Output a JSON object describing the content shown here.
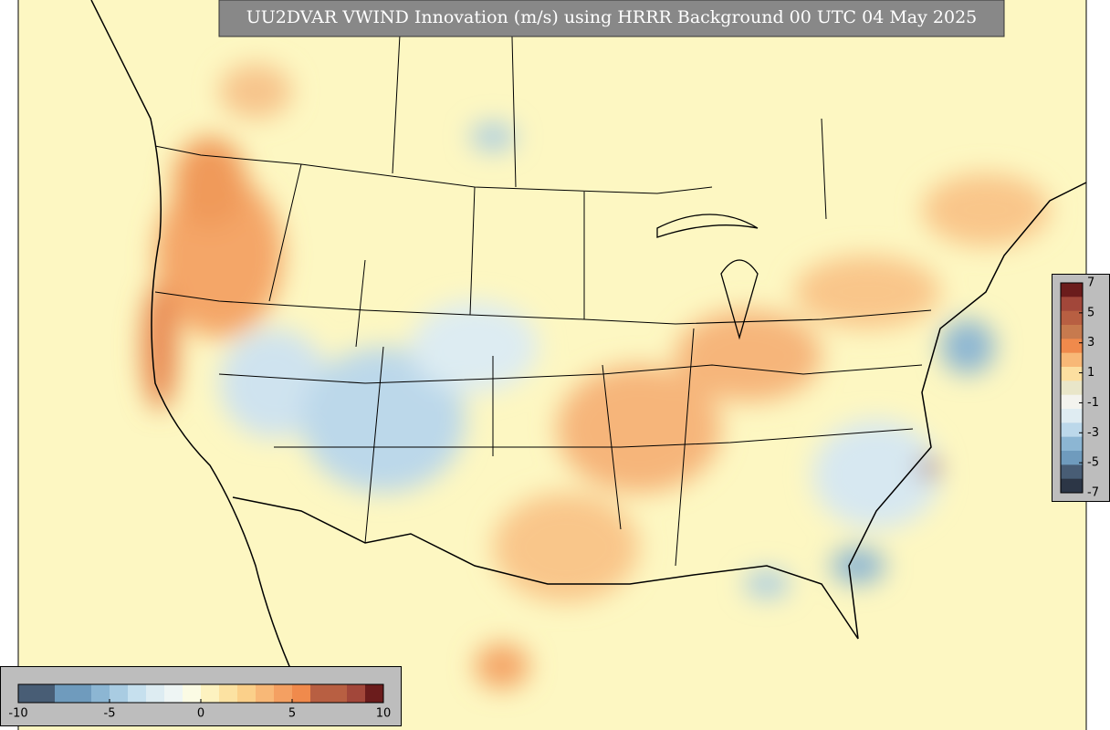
{
  "title": "UU2DVAR VWIND Innovation (m/s) using HRRR Background 00 UTC 04 May 2025",
  "colorbar_bottom": {
    "ticks": [
      -10,
      -5,
      0,
      5,
      10
    ],
    "colors": [
      "#485d75",
      "#485d75",
      "#6f9bbd",
      "#6f9bbd",
      "#8cb6d3",
      "#a9cce2",
      "#c6e0ee",
      "#ddecf2",
      "#eef5f4",
      "#fbfbe4",
      "#fdf2c0",
      "#fce2a2",
      "#fbd08a",
      "#f8b877",
      "#f4a062",
      "#f08a4c",
      "#b85f42",
      "#b85f42",
      "#a2473a",
      "#6b1c1c"
    ]
  },
  "colorbar_right": {
    "ticks": [
      7,
      5,
      3,
      1,
      -1,
      -3,
      -5,
      -7
    ],
    "colors": [
      "#6b1c1c",
      "#a2473a",
      "#b85f42",
      "#c77a4e",
      "#f08a4c",
      "#f8b877",
      "#fcdfa0",
      "#e9e6c9",
      "#f3f3ee",
      "#dfecf2",
      "#bcd8ea",
      "#8cb6d3",
      "#6f9bbd",
      "#485d75",
      "#2c3646"
    ]
  }
}
